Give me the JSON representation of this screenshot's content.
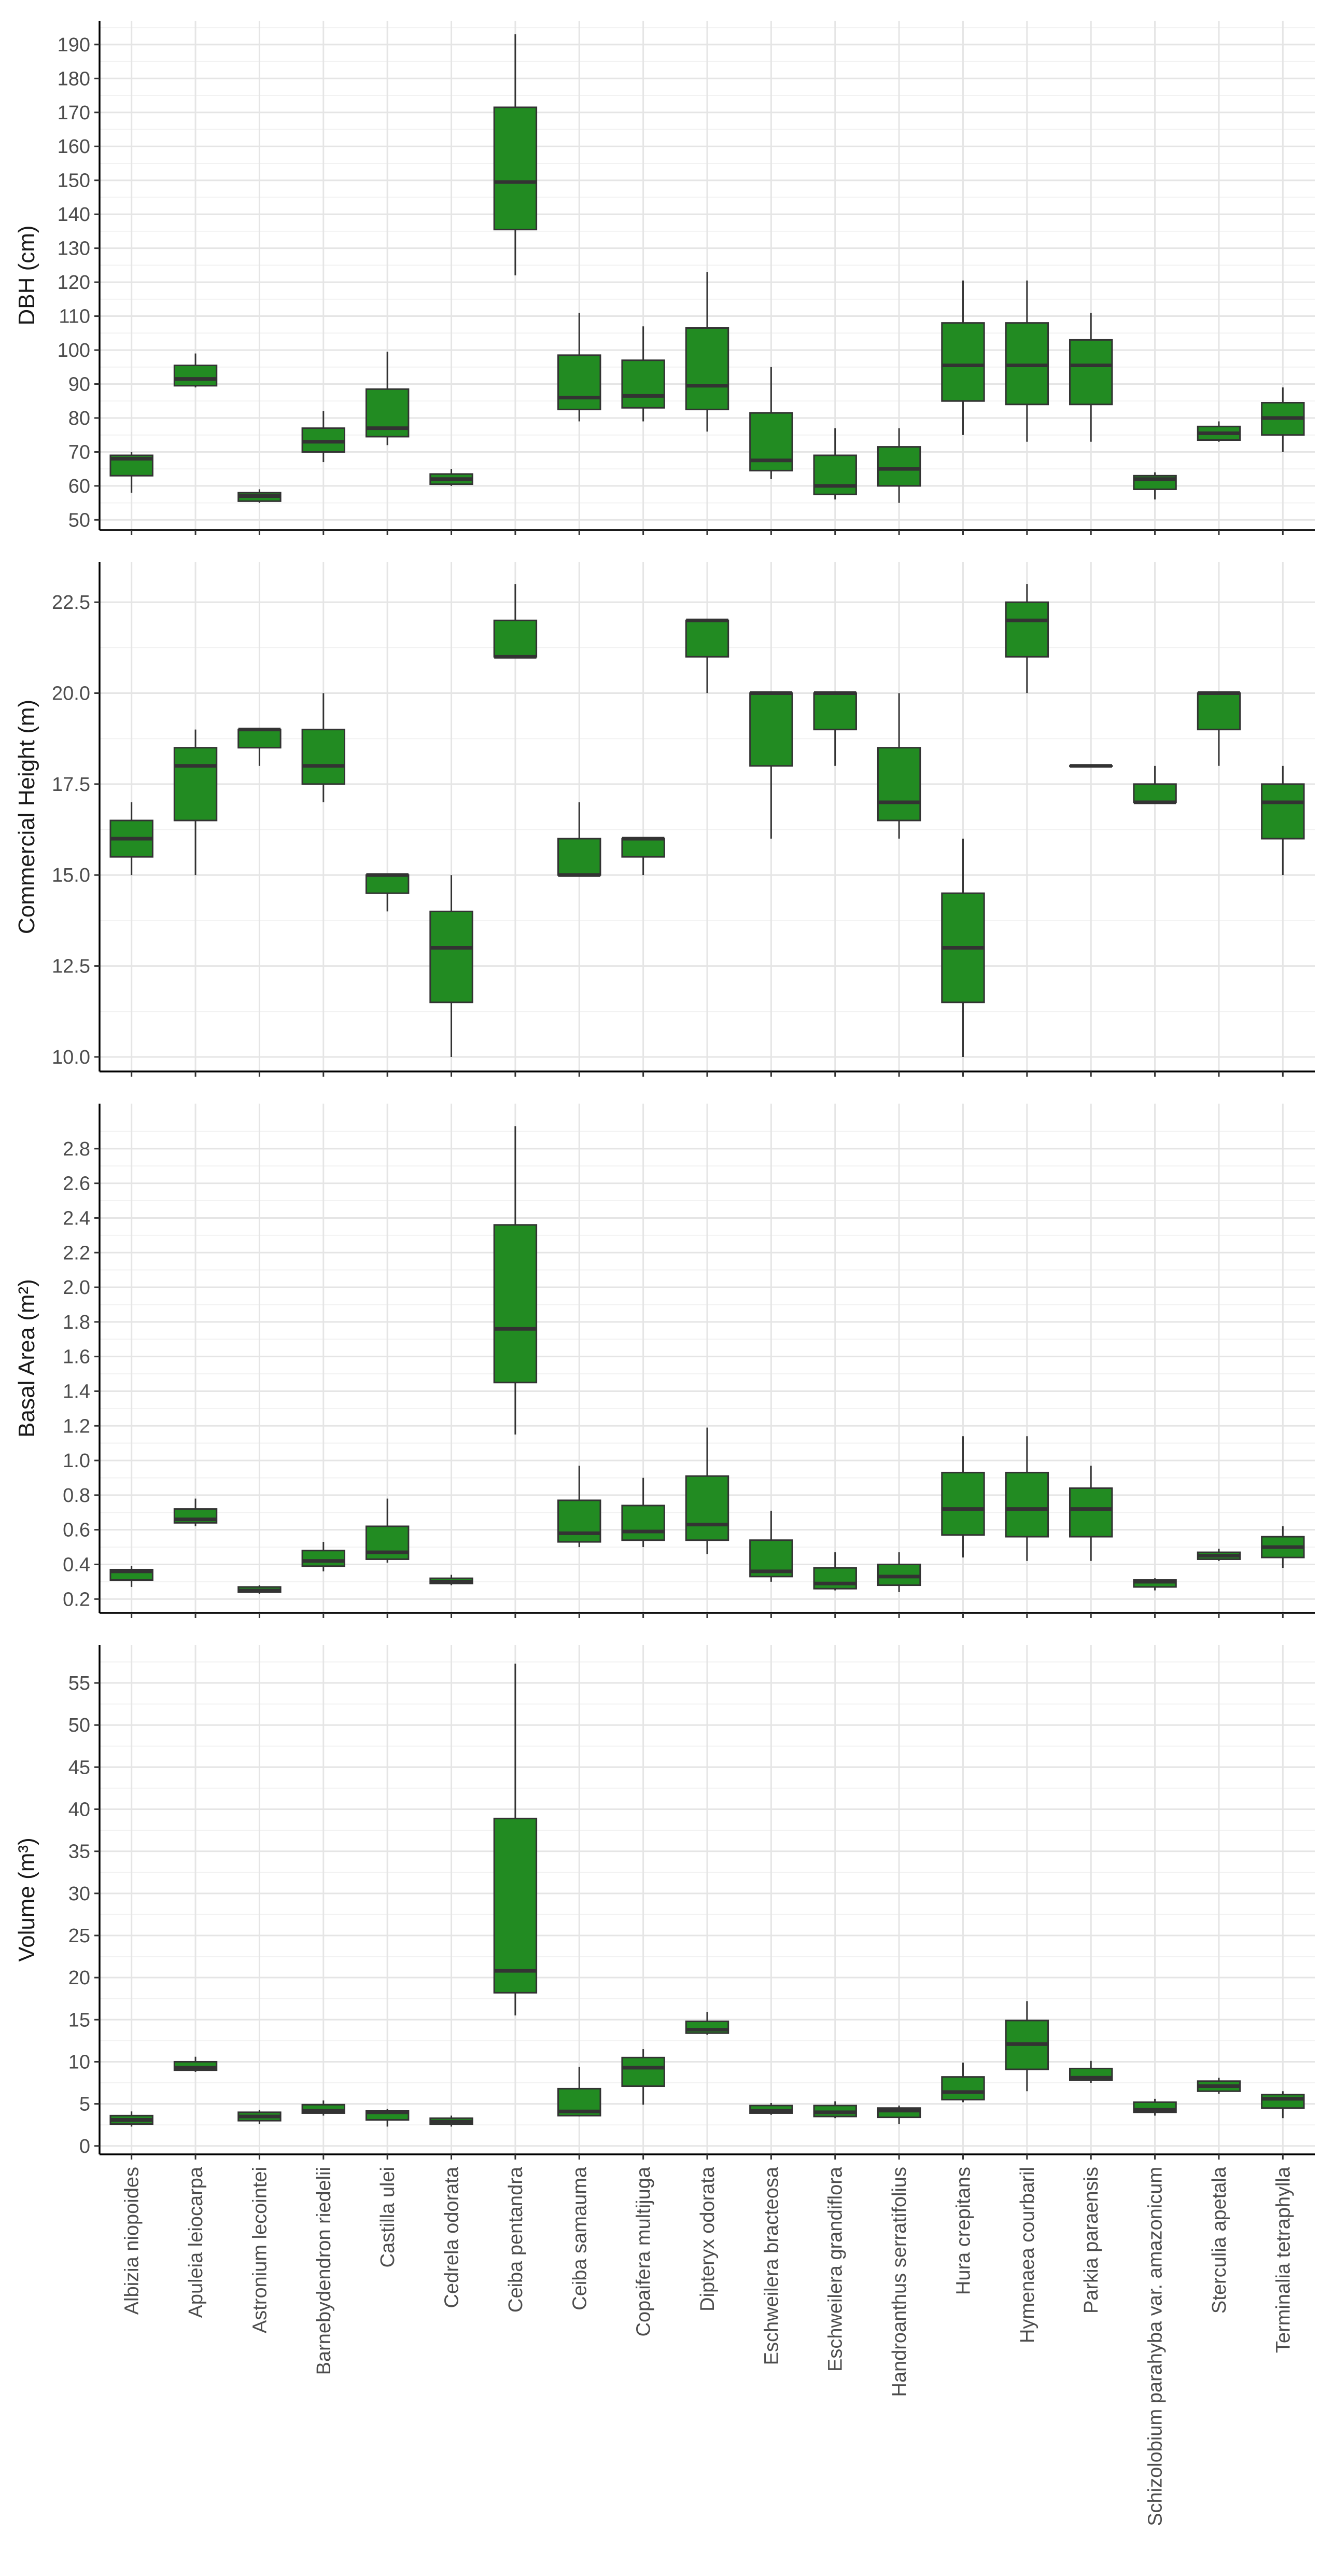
{
  "chart_data": {
    "type": "box",
    "fill_color": "#228b22",
    "outline_color": "#333333",
    "grid": true,
    "categories": [
      "Albizia niopoides",
      "Apuleia leiocarpa",
      "Astronium lecointei",
      "Barnebydendron riedelii",
      "Castilla ulei",
      "Cedrela odorata",
      "Ceiba pentandra",
      "Ceiba samauma",
      "Copaifera multijuga",
      "Dipteryx odorata",
      "Eschweilera bracteosa",
      "Eschweilera grandiflora",
      "Handroanthus serratifolius",
      "Hura crepitans",
      "Hymenaea courbaril",
      "Parkia paraensis",
      "Schizolobium parahyba var. amazonicum",
      "Sterculia apetala",
      "Terminalia tetraphylla"
    ],
    "panels": [
      {
        "ylabel": "DBH (cm)",
        "ylim": [
          47,
          197
        ],
        "ticks": [
          50,
          60,
          70,
          80,
          90,
          100,
          110,
          120,
          130,
          140,
          150,
          160,
          170,
          180,
          190
        ],
        "tick_labels": [
          "50",
          "60",
          "70",
          "80",
          "90",
          "100",
          "110",
          "120",
          "130",
          "140",
          "150",
          "160",
          "170",
          "180",
          "190"
        ],
        "boxes": [
          {
            "min": 58,
            "q1": 63,
            "median": 68,
            "q3": 69,
            "max": 70
          },
          {
            "min": 89,
            "q1": 89.5,
            "median": 91.5,
            "q3": 95.5,
            "max": 99
          },
          {
            "min": 55,
            "q1": 55.5,
            "median": 57,
            "q3": 58,
            "max": 59
          },
          {
            "min": 67,
            "q1": 70,
            "median": 73,
            "q3": 77,
            "max": 82
          },
          {
            "min": 72,
            "q1": 74.5,
            "median": 77,
            "q3": 88.5,
            "max": 99.5
          },
          {
            "min": 60,
            "q1": 60.5,
            "median": 62,
            "q3": 63.5,
            "max": 65
          },
          {
            "min": 122,
            "q1": 135.5,
            "median": 149.5,
            "q3": 171.5,
            "max": 193
          },
          {
            "min": 79,
            "q1": 82.5,
            "median": 86,
            "q3": 98.5,
            "max": 111
          },
          {
            "min": 79,
            "q1": 83,
            "median": 86.5,
            "q3": 97,
            "max": 107
          },
          {
            "min": 76,
            "q1": 82.5,
            "median": 89.5,
            "q3": 106.5,
            "max": 123
          },
          {
            "min": 62,
            "q1": 64.5,
            "median": 67.5,
            "q3": 81.5,
            "max": 95
          },
          {
            "min": 56,
            "q1": 57.5,
            "median": 60,
            "q3": 69,
            "max": 77
          },
          {
            "min": 55,
            "q1": 60,
            "median": 65,
            "q3": 71.5,
            "max": 77
          },
          {
            "min": 75,
            "q1": 85,
            "median": 95.5,
            "q3": 108,
            "max": 120.5
          },
          {
            "min": 73,
            "q1": 84,
            "median": 95.5,
            "q3": 108,
            "max": 120.5
          },
          {
            "min": 73,
            "q1": 84,
            "median": 95.5,
            "q3": 103,
            "max": 111
          },
          {
            "min": 56,
            "q1": 59,
            "median": 62,
            "q3": 63,
            "max": 64
          },
          {
            "min": 73,
            "q1": 73.5,
            "median": 75.5,
            "q3": 77.5,
            "max": 79
          },
          {
            "min": 70,
            "q1": 75,
            "median": 80,
            "q3": 84.5,
            "max": 89
          }
        ]
      },
      {
        "ylabel": "Commercial Height (m)",
        "ylim": [
          9.6,
          23.6
        ],
        "ticks": [
          10,
          12.5,
          15,
          17.5,
          20,
          22.5
        ],
        "tick_labels": [
          "10.0",
          "12.5",
          "15.0",
          "17.5",
          "20.0",
          "22.5"
        ],
        "boxes": [
          {
            "min": 15,
            "q1": 15.5,
            "median": 16,
            "q3": 16.5,
            "max": 17
          },
          {
            "min": 15,
            "q1": 16.5,
            "median": 18,
            "q3": 18.5,
            "max": 19
          },
          {
            "min": 18,
            "q1": 18.5,
            "median": 19,
            "q3": 19,
            "max": 19
          },
          {
            "min": 17,
            "q1": 17.5,
            "median": 18,
            "q3": 19,
            "max": 20
          },
          {
            "min": 14,
            "q1": 14.5,
            "median": 15,
            "q3": 15,
            "max": 15
          },
          {
            "min": 10,
            "q1": 11.5,
            "median": 13,
            "q3": 14,
            "max": 15
          },
          {
            "min": 21,
            "q1": 21,
            "median": 21,
            "q3": 22,
            "max": 23
          },
          {
            "min": 15,
            "q1": 15,
            "median": 15,
            "q3": 16,
            "max": 17
          },
          {
            "min": 15,
            "q1": 15.5,
            "median": 16,
            "q3": 16,
            "max": 16
          },
          {
            "min": 20,
            "q1": 21,
            "median": 22,
            "q3": 22,
            "max": 22
          },
          {
            "min": 16,
            "q1": 18,
            "median": 20,
            "q3": 20,
            "max": 20
          },
          {
            "min": 18,
            "q1": 19,
            "median": 20,
            "q3": 20,
            "max": 20
          },
          {
            "min": 16,
            "q1": 16.5,
            "median": 17,
            "q3": 18.5,
            "max": 20
          },
          {
            "min": 10,
            "q1": 11.5,
            "median": 13,
            "q3": 14.5,
            "max": 16
          },
          {
            "min": 20,
            "q1": 21,
            "median": 22,
            "q3": 22.5,
            "max": 23
          },
          {
            "min": 18,
            "q1": 18,
            "median": 18,
            "q3": 18,
            "max": 18
          },
          {
            "min": 17,
            "q1": 17,
            "median": 17,
            "q3": 17.5,
            "max": 18
          },
          {
            "min": 18,
            "q1": 19,
            "median": 20,
            "q3": 20,
            "max": 20
          },
          {
            "min": 15,
            "q1": 16,
            "median": 17,
            "q3": 17.5,
            "max": 18
          }
        ]
      },
      {
        "ylabel": "Basal Area (m²)",
        "ylim": [
          0.12,
          3.06
        ],
        "ticks": [
          0.2,
          0.4,
          0.6,
          0.8,
          1.0,
          1.2,
          1.4,
          1.6,
          1.8,
          2.0,
          2.2,
          2.4,
          2.6,
          2.8
        ],
        "tick_labels": [
          "0.2",
          "0.4",
          "0.6",
          "0.8",
          "1.0",
          "1.2",
          "1.4",
          "1.6",
          "1.8",
          "2.0",
          "2.2",
          "2.4",
          "2.6",
          "2.8"
        ],
        "boxes": [
          {
            "min": 0.27,
            "q1": 0.31,
            "median": 0.36,
            "q3": 0.37,
            "max": 0.39
          },
          {
            "min": 0.62,
            "q1": 0.64,
            "median": 0.66,
            "q3": 0.72,
            "max": 0.78
          },
          {
            "min": 0.23,
            "q1": 0.24,
            "median": 0.25,
            "q3": 0.27,
            "max": 0.28
          },
          {
            "min": 0.36,
            "q1": 0.39,
            "median": 0.42,
            "q3": 0.48,
            "max": 0.53
          },
          {
            "min": 0.41,
            "q1": 0.43,
            "median": 0.47,
            "q3": 0.62,
            "max": 0.78
          },
          {
            "min": 0.28,
            "q1": 0.29,
            "median": 0.3,
            "q3": 0.32,
            "max": 0.34
          },
          {
            "min": 1.15,
            "q1": 1.45,
            "median": 1.76,
            "q3": 2.36,
            "max": 2.93
          },
          {
            "min": 0.5,
            "q1": 0.53,
            "median": 0.58,
            "q3": 0.77,
            "max": 0.97
          },
          {
            "min": 0.5,
            "q1": 0.54,
            "median": 0.59,
            "q3": 0.74,
            "max": 0.9
          },
          {
            "min": 0.46,
            "q1": 0.54,
            "median": 0.63,
            "q3": 0.91,
            "max": 1.19
          },
          {
            "min": 0.3,
            "q1": 0.33,
            "median": 0.36,
            "q3": 0.54,
            "max": 0.71
          },
          {
            "min": 0.25,
            "q1": 0.26,
            "median": 0.29,
            "q3": 0.38,
            "max": 0.47
          },
          {
            "min": 0.24,
            "q1": 0.28,
            "median": 0.33,
            "q3": 0.4,
            "max": 0.47
          },
          {
            "min": 0.44,
            "q1": 0.57,
            "median": 0.72,
            "q3": 0.93,
            "max": 1.14
          },
          {
            "min": 0.42,
            "q1": 0.56,
            "median": 0.72,
            "q3": 0.93,
            "max": 1.14
          },
          {
            "min": 0.42,
            "q1": 0.56,
            "median": 0.72,
            "q3": 0.84,
            "max": 0.97
          },
          {
            "min": 0.25,
            "q1": 0.27,
            "median": 0.3,
            "q3": 0.31,
            "max": 0.32
          },
          {
            "min": 0.42,
            "q1": 0.43,
            "median": 0.45,
            "q3": 0.47,
            "max": 0.49
          },
          {
            "min": 0.38,
            "q1": 0.44,
            "median": 0.5,
            "q3": 0.56,
            "max": 0.62
          }
        ]
      },
      {
        "ylabel": "Volume (m³)",
        "ylim": [
          -1.0,
          59.5
        ],
        "ticks": [
          0,
          5,
          10,
          15,
          20,
          25,
          30,
          35,
          40,
          45,
          50,
          55
        ],
        "tick_labels": [
          "0",
          "5",
          "10",
          "15",
          "20",
          "25",
          "30",
          "35",
          "40",
          "45",
          "50",
          "55"
        ],
        "boxes": [
          {
            "min": 2.3,
            "q1": 2.6,
            "median": 3.1,
            "q3": 3.6,
            "max": 4.1
          },
          {
            "min": 8.8,
            "q1": 9.0,
            "median": 9.3,
            "q3": 10.0,
            "max": 10.6
          },
          {
            "min": 2.6,
            "q1": 3.0,
            "median": 3.5,
            "q3": 4.0,
            "max": 4.3
          },
          {
            "min": 3.6,
            "q1": 3.9,
            "median": 4.2,
            "q3": 4.9,
            "max": 5.4
          },
          {
            "min": 2.3,
            "q1": 3.1,
            "median": 4.0,
            "q3": 4.2,
            "max": 4.4
          },
          {
            "min": 2.3,
            "q1": 2.6,
            "median": 2.9,
            "q3": 3.3,
            "max": 3.6
          },
          {
            "min": 15.5,
            "q1": 18.2,
            "median": 20.8,
            "q3": 38.9,
            "max": 57.3
          },
          {
            "min": 3.5,
            "q1": 3.6,
            "median": 4.1,
            "q3": 6.8,
            "max": 9.4
          },
          {
            "min": 4.9,
            "q1": 7.1,
            "median": 9.3,
            "q3": 10.5,
            "max": 11.5
          },
          {
            "min": 13.2,
            "q1": 13.4,
            "median": 13.8,
            "q3": 14.8,
            "max": 15.9
          },
          {
            "min": 3.7,
            "q1": 3.9,
            "median": 4.2,
            "q3": 4.8,
            "max": 5.1
          },
          {
            "min": 3.3,
            "q1": 3.5,
            "median": 4.0,
            "q3": 4.8,
            "max": 5.3
          },
          {
            "min": 2.6,
            "q1": 3.4,
            "median": 4.2,
            "q3": 4.5,
            "max": 4.8
          },
          {
            "min": 5.2,
            "q1": 5.5,
            "median": 6.4,
            "q3": 8.2,
            "max": 9.9
          },
          {
            "min": 6.5,
            "q1": 9.1,
            "median": 12.1,
            "q3": 14.9,
            "max": 17.2
          },
          {
            "min": 7.5,
            "q1": 7.8,
            "median": 8.1,
            "q3": 9.2,
            "max": 10.1
          },
          {
            "min": 3.6,
            "q1": 4.0,
            "median": 4.3,
            "q3": 5.2,
            "max": 5.6
          },
          {
            "min": 6.2,
            "q1": 6.5,
            "median": 7.1,
            "q3": 7.7,
            "max": 8.1
          },
          {
            "min": 3.3,
            "q1": 4.5,
            "median": 5.6,
            "q3": 6.1,
            "max": 6.5
          }
        ]
      }
    ]
  }
}
